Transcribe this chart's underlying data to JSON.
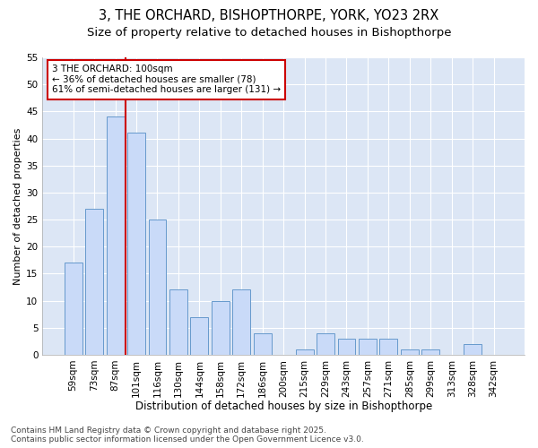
{
  "title1": "3, THE ORCHARD, BISHOPTHORPE, YORK, YO23 2RX",
  "title2": "Size of property relative to detached houses in Bishopthorpe",
  "xlabel": "Distribution of detached houses by size in Bishopthorpe",
  "ylabel": "Number of detached properties",
  "categories": [
    "59sqm",
    "73sqm",
    "87sqm",
    "101sqm",
    "116sqm",
    "130sqm",
    "144sqm",
    "158sqm",
    "172sqm",
    "186sqm",
    "200sqm",
    "215sqm",
    "229sqm",
    "243sqm",
    "257sqm",
    "271sqm",
    "285sqm",
    "299sqm",
    "313sqm",
    "328sqm",
    "342sqm"
  ],
  "values": [
    17,
    27,
    44,
    41,
    25,
    12,
    7,
    10,
    12,
    4,
    0,
    1,
    4,
    3,
    3,
    3,
    1,
    1,
    0,
    2,
    0
  ],
  "bar_color": "#c9daf8",
  "bar_edge_color": "#6699cc",
  "fig_bg_color": "#ffffff",
  "plot_bg_color": "#dce6f5",
  "grid_color": "#ffffff",
  "vline_color": "#cc0000",
  "vline_x_index": 3,
  "annotation_text": "3 THE ORCHARD: 100sqm\n← 36% of detached houses are smaller (78)\n61% of semi-detached houses are larger (131) →",
  "annotation_box_facecolor": "#ffffff",
  "annotation_box_edgecolor": "#cc0000",
  "ylim": [
    0,
    55
  ],
  "yticks": [
    0,
    5,
    10,
    15,
    20,
    25,
    30,
    35,
    40,
    45,
    50,
    55
  ],
  "footer": "Contains HM Land Registry data © Crown copyright and database right 2025.\nContains public sector information licensed under the Open Government Licence v3.0.",
  "title1_fontsize": 10.5,
  "title2_fontsize": 9.5,
  "xlabel_fontsize": 8.5,
  "ylabel_fontsize": 8,
  "tick_fontsize": 7.5,
  "annotation_fontsize": 7.5,
  "footer_fontsize": 6.5
}
